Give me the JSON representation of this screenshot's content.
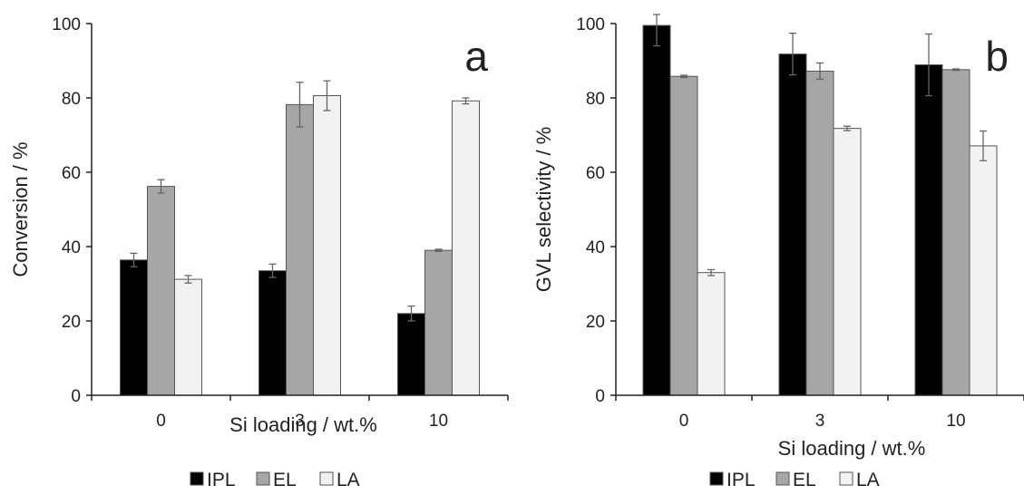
{
  "chart_data": [
    {
      "type": "bar",
      "panel_letter": "a",
      "categories": [
        "0",
        "3",
        "10"
      ],
      "xlabel": "Si loading / wt.%",
      "ylabel": "Conversion / %",
      "ylim": [
        0,
        100
      ],
      "yticks": [
        "0",
        "20",
        "40",
        "60",
        "80",
        "100"
      ],
      "grid": false,
      "legend_position": "bottom",
      "series": [
        {
          "name": "IPL",
          "color": "#000000",
          "values": [
            36.4,
            33.5,
            22.0
          ],
          "errors": [
            1.8,
            1.8,
            2.0
          ]
        },
        {
          "name": "EL",
          "color": "#a6a6a6",
          "values": [
            56.2,
            78.2,
            39.0
          ],
          "errors": [
            1.8,
            6.0,
            0.3
          ]
        },
        {
          "name": "LA",
          "color": "#f2f2f2",
          "values": [
            31.2,
            80.6,
            79.2
          ],
          "errors": [
            1.0,
            4.0,
            0.8
          ]
        }
      ]
    },
    {
      "type": "bar",
      "panel_letter": "b",
      "categories": [
        "0",
        "3",
        "10"
      ],
      "xlabel": "Si loading / wt.%",
      "ylabel": "GVL selectivity / %",
      "ylim": [
        0,
        100
      ],
      "yticks": [
        "0",
        "20",
        "40",
        "60",
        "80",
        "100"
      ],
      "grid": false,
      "legend_position": "bottom",
      "series": [
        {
          "name": "IPL",
          "color": "#000000",
          "values": [
            99.5,
            91.8,
            88.9
          ],
          "errors": [
            5.5,
            5.6,
            8.3
          ]
        },
        {
          "name": "EL",
          "color": "#a6a6a6",
          "values": [
            85.8,
            87.2,
            87.6
          ],
          "errors": [
            0.3,
            2.2,
            0.2
          ]
        },
        {
          "name": "LA",
          "color": "#f2f2f2",
          "values": [
            33.0,
            71.8,
            67.1
          ],
          "errors": [
            0.8,
            0.6,
            4.0
          ]
        }
      ]
    }
  ]
}
